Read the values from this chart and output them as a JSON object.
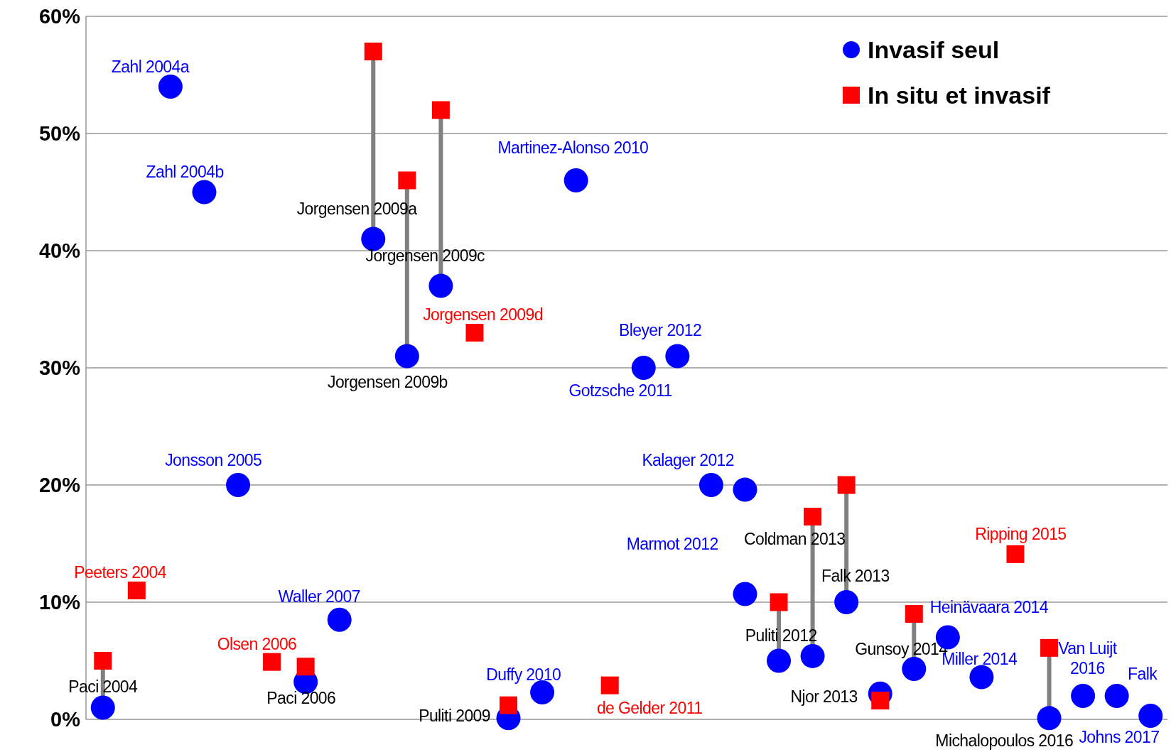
{
  "chart_data": {
    "type": "scatter",
    "categories": [
      null,
      null,
      null,
      null,
      null,
      null,
      null,
      null,
      null,
      null,
      null,
      null,
      null,
      null,
      null,
      null,
      null,
      null,
      null,
      null,
      null,
      null,
      null,
      null,
      null,
      null,
      null,
      null,
      null,
      null,
      null,
      null
    ],
    "series": [
      {
        "name": "Invasif seul",
        "color": "#0000ff",
        "marker": "circle",
        "values": [
          1.0,
          null,
          54,
          45,
          20,
          null,
          3.2,
          8.5,
          41,
          31,
          37,
          null,
          0.1,
          2.3,
          46,
          null,
          30,
          31,
          20,
          10.7,
          5.0,
          5.4,
          10.0,
          2.2,
          4.3,
          7.0,
          3.6,
          null,
          0.1,
          2.0,
          2.0,
          0.3
        ],
        "value_labels": [
          "Paci 2004",
          null,
          "Zahl 2004a",
          "Zahl 2004b",
          "Jonsson 2005",
          null,
          "Paci  2006",
          "Waller 2007",
          "Jorgensen 2009a",
          "Jorgensen 2009b",
          "Jorgensen 2009c",
          null,
          "Puliti 2009",
          "Duffy 2010",
          "Martinez-Alonso 2010",
          null,
          "Gotzsche 2011",
          "Bleyer 2012",
          "Kalager 2012",
          "Marmot 2012",
          "Puliti 2012",
          null,
          "Falk 2013",
          "Njor 2013",
          "Gunsoy 2014",
          "Heinävaara 2014",
          "Miller 2014",
          null,
          "Michalopoulos 2016",
          "Van Luijt\n2016",
          "Falk",
          "Johns 2017"
        ]
      },
      {
        "name": "In situ et invasif",
        "color": "#ff0000",
        "marker": "square",
        "values": [
          5.0,
          11.0,
          null,
          null,
          null,
          4.9,
          4.5,
          null,
          57,
          46,
          52,
          33,
          1.2,
          null,
          null,
          2.9,
          null,
          null,
          null,
          null,
          10.0,
          17.3,
          20.0,
          1.6,
          9.0,
          null,
          null,
          14.1,
          6.1,
          null,
          null,
          null
        ],
        "value_labels": [
          null,
          "Peeters 2004",
          null,
          null,
          null,
          "Olsen 2006",
          null,
          null,
          null,
          null,
          null,
          "Jorgensen 2009d",
          null,
          null,
          null,
          "de Gelder 2011",
          null,
          null,
          null,
          null,
          null,
          "Coldman 2013",
          null,
          null,
          null,
          null,
          null,
          "Ripping 2015",
          null,
          null,
          null,
          null
        ]
      },
      {
        "color": "#0000ff",
        "marker": "circle",
        "values": [
          null,
          null,
          null,
          null,
          null,
          null,
          null,
          null,
          null,
          null,
          null,
          null,
          null,
          null,
          null,
          null,
          null,
          null,
          null,
          19.6,
          null,
          null,
          null,
          null,
          null,
          null,
          null,
          null,
          null,
          null,
          null,
          null
        ]
      }
    ],
    "ylim": [
      0,
      60
    ],
    "yticks": [
      {
        "value": 0,
        "label": "0%"
      },
      {
        "value": 10,
        "label": "10%"
      },
      {
        "value": 20,
        "label": "20%"
      },
      {
        "value": 30,
        "label": "30%"
      },
      {
        "value": 40,
        "label": "40%"
      },
      {
        "value": 50,
        "label": "50%"
      },
      {
        "value": 60,
        "label": "60%"
      }
    ],
    "grid": "y",
    "legend": "top right"
  }
}
